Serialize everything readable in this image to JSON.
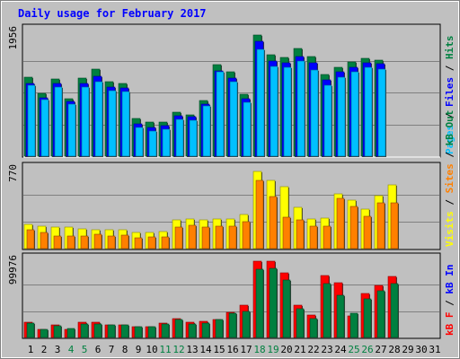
{
  "title": "Daily usage for February 2017",
  "colors": {
    "background": "#c0c0c0",
    "panel": "#c0c0c0",
    "title_text": "#0000ff",
    "hits": "#008040",
    "files": "#0000ff",
    "pages": "#00c0ff",
    "visits": "#ffff00",
    "sites": "#ff8000",
    "kbin": "#0000ff",
    "kbout": "#008040",
    "kbf": "#ff0000",
    "weekend_label": "#008040",
    "weekday_label": "#000000"
  },
  "right_labels": {
    "top": [
      {
        "text": "Pages",
        "color": "#00c0ff"
      },
      {
        "text": " / ",
        "color": "#000000"
      },
      {
        "text": "Files",
        "color": "#0000ff"
      },
      {
        "text": " / ",
        "color": "#000000"
      },
      {
        "text": "Hits",
        "color": "#008040"
      }
    ],
    "middle": [
      {
        "text": "Visits",
        "color": "#ffff00"
      },
      {
        "text": " / ",
        "color": "#000000"
      },
      {
        "text": "Sites",
        "color": "#ff8000"
      },
      {
        "text": " / ",
        "color": "#000000"
      },
      {
        "text": "kB Out",
        "color": "#008040"
      }
    ],
    "bottom": [
      {
        "text": "kB F",
        "color": "#ff0000"
      },
      {
        "text": " / ",
        "color": "#000000"
      },
      {
        "text": "kB In",
        "color": "#0000ff"
      }
    ]
  },
  "chart_data": {
    "type": "bar",
    "title": "Daily usage for February 2017",
    "categories": [
      "1",
      "2",
      "3",
      "4",
      "5",
      "6",
      "7",
      "8",
      "9",
      "10",
      "11",
      "12",
      "13",
      "14",
      "15",
      "16",
      "17",
      "18",
      "19",
      "20",
      "21",
      "22",
      "23",
      "24",
      "25",
      "26",
      "27",
      "28",
      "29",
      "30",
      "31"
    ],
    "weekend_days": [
      4,
      5,
      11,
      12,
      18,
      19,
      25,
      26
    ],
    "panels": [
      {
        "name": "top",
        "max_label": "1956",
        "ymax": 1956,
        "series": [
          {
            "name": "Hits",
            "values": [
              1210,
              960,
              1190,
              880,
              1200,
              1330,
              1140,
              1120,
              580,
              520,
              530,
              680,
              640,
              850,
              1400,
              1290,
              950,
              1860,
              1560,
              1520,
              1650,
              1530,
              1260,
              1370,
              1450,
              1500,
              1470,
              null,
              null,
              null,
              null
            ]
          },
          {
            "name": "Files",
            "values": [
              1120,
              900,
              1110,
              840,
              1120,
              1230,
              1060,
              1040,
              490,
              440,
              470,
              620,
              600,
              800,
              1310,
              1200,
              880,
              1770,
              1460,
              1430,
              1530,
              1430,
              1170,
              1290,
              1360,
              1430,
              1420,
              null,
              null,
              null,
              null
            ]
          },
          {
            "name": "Pages",
            "values": [
              1090,
              870,
              1060,
              800,
              1060,
              1140,
              1000,
              990,
              440,
              390,
              420,
              570,
              550,
              770,
              1290,
              1140,
              830,
              1640,
              1380,
              1360,
              1460,
              1320,
              1090,
              1210,
              1300,
              1370,
              1340,
              null,
              null,
              null,
              null
            ]
          }
        ]
      },
      {
        "name": "middle",
        "max_label": "770",
        "ymax": 770,
        "series": [
          {
            "name": "Visits",
            "values": [
              230,
              210,
              205,
              200,
              190,
              180,
              175,
              180,
              155,
              155,
              160,
              270,
              275,
              270,
              280,
              280,
              320,
              725,
              645,
              580,
              385,
              275,
              285,
              520,
              460,
              375,
              500,
              600,
              null,
              null,
              null
            ]
          },
          {
            "name": "Sites",
            "values": [
              175,
              155,
              115,
              115,
              115,
              135,
              120,
              130,
              100,
              110,
              110,
              205,
              220,
              205,
              210,
              215,
              255,
              640,
              490,
              295,
              270,
              210,
              215,
              470,
              395,
              305,
              430,
              430,
              null,
              null,
              null
            ]
          }
        ]
      },
      {
        "name": "bottom",
        "max_label": "99976",
        "ymax": 99976,
        "series": [
          {
            "name": "kB F",
            "values": [
              19000,
              10000,
              16000,
              10000,
              19000,
              19000,
              16000,
              16000,
              13000,
              14000,
              18000,
              24000,
              19000,
              20000,
              23000,
              31000,
              40000,
              96000,
              96000,
              81000,
              41000,
              28000,
              77000,
              68000,
              27000,
              55000,
              65000,
              76000,
              null,
              null,
              null
            ]
          },
          {
            "name": "kB In",
            "values": [
              18000,
              10000,
              15000,
              11000,
              17000,
              17000,
              16000,
              16000,
              14000,
              14000,
              17000,
              23000,
              17000,
              18000,
              22000,
              30000,
              33000,
              85000,
              87000,
              72000,
              36000,
              24000,
              67000,
              53000,
              30000,
              48000,
              58000,
              67000,
              null,
              null,
              null
            ]
          }
        ]
      }
    ]
  }
}
